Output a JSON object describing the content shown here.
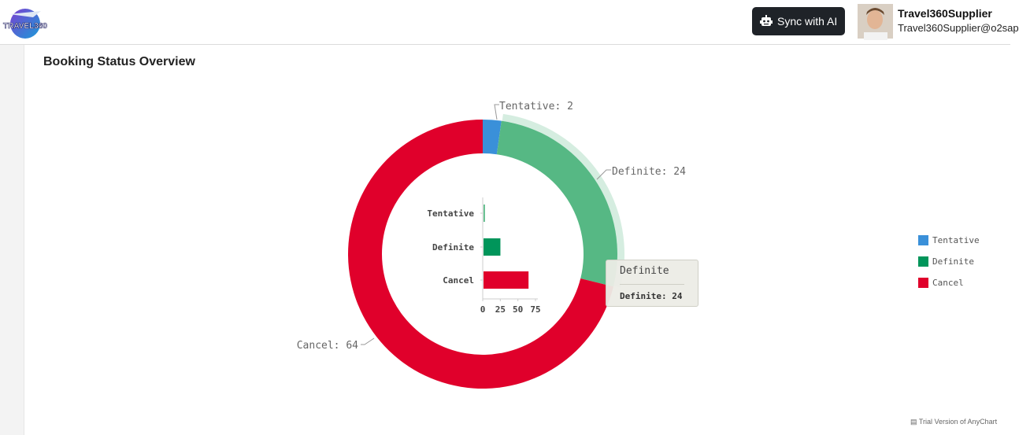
{
  "header": {
    "logo_text": "TRAVEL360",
    "sync_button_label": "Sync with AI",
    "user_name": "Travel360Supplier",
    "user_email": "Travel360Supplier@o2sap"
  },
  "card": {
    "title": "Booking Status Overview"
  },
  "colors": {
    "tentative": "#3a90d9",
    "definite": "#56b884",
    "definite_bar": "#00955a",
    "cancel": "#e0002b"
  },
  "chart_data": [
    {
      "type": "pie",
      "subtype": "donut",
      "title": "",
      "categories": [
        "Tentative",
        "Definite",
        "Cancel"
      ],
      "values": [
        2,
        24,
        64
      ],
      "labels": [
        "Tentative: 2",
        "Definite: 24",
        "Cancel: 64"
      ],
      "hovered": "Definite",
      "legend_placement": "right"
    },
    {
      "type": "bar",
      "orientation": "horizontal",
      "categories": [
        "Tentative",
        "Definite",
        "Cancel"
      ],
      "values": [
        2,
        24,
        64
      ],
      "xlim": [
        0,
        75
      ],
      "xticks": [
        "0",
        "25",
        "50",
        "75"
      ],
      "grid": false
    }
  ],
  "tooltip": {
    "title": "Definite",
    "body": "Definite: 24"
  },
  "legend": {
    "items": [
      "Tentative",
      "Definite",
      "Cancel"
    ]
  },
  "footer": {
    "trial_text": "Trial Version of AnyChart"
  }
}
